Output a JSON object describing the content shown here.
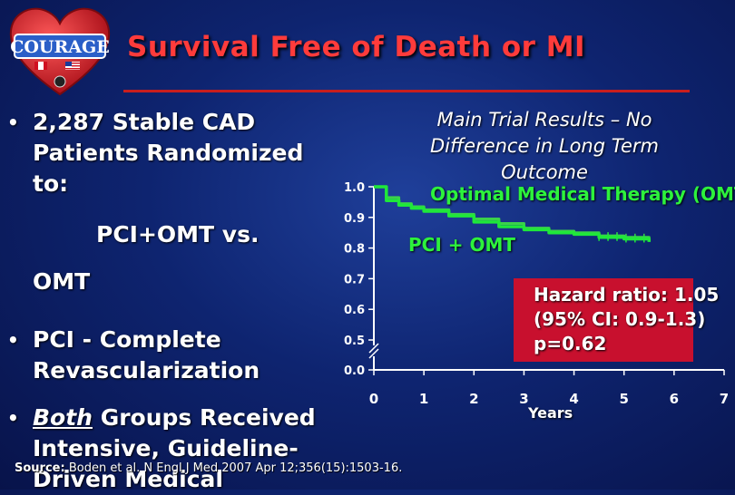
{
  "logo": {
    "text": "COURAGE"
  },
  "title": "Survival Free of Death or MI",
  "bullets": {
    "b1_lines": [
      "2,287 Stable CAD",
      "Patients Randomized",
      "to:"
    ],
    "sub1": "PCI+OMT vs.",
    "sub2": "OMT",
    "b2_lines": [
      "PCI - Complete",
      "Revascularization"
    ],
    "b3_emph": "Both",
    "b3_rest": " Groups Received",
    "b3_lines": [
      "Intensive, Guideline-",
      "Driven Medical"
    ]
  },
  "source": {
    "label": "Source:",
    "text": " Boden et al. N Engl J Med 2007 Apr 12;356(15):1503-16."
  },
  "chart_note": [
    "Main Trial Results – No",
    "Difference in Long Term",
    "Outcome"
  ],
  "hazard": [
    "Hazard ratio: 1.05",
    "(95% CI: 0.9-1.3)",
    "p=0.62"
  ],
  "colors": {
    "omt": "#3ad24a",
    "pci": "#1fe83a",
    "title": "#ff3b3b",
    "box": "#c8102e"
  },
  "chart_data": {
    "type": "line",
    "title": "",
    "xlabel": "Years",
    "ylabel": "",
    "x_ticks": [
      0,
      1,
      2,
      3,
      4,
      5,
      6,
      7
    ],
    "y_ticks": [
      "0.0",
      "0.5",
      "0.6",
      "0.7",
      "0.8",
      "0.9",
      "1.0"
    ],
    "y_break": true,
    "xlim": [
      0,
      7
    ],
    "ylim": [
      0.5,
      1.0
    ],
    "series": [
      {
        "name": "Optimal Medical Therapy (OMT)",
        "x": [
          0,
          0.25,
          0.5,
          0.75,
          1,
          1.5,
          2,
          2.5,
          3,
          3.5,
          4,
          4.5,
          5,
          5.5
        ],
        "y": [
          1.0,
          0.965,
          0.945,
          0.935,
          0.925,
          0.91,
          0.895,
          0.88,
          0.865,
          0.855,
          0.85,
          0.84,
          0.835,
          0.83
        ]
      },
      {
        "name": "PCI + OMT",
        "x": [
          0,
          0.25,
          0.5,
          0.75,
          1,
          1.5,
          2,
          2.5,
          3,
          3.5,
          4,
          4.5,
          5,
          5.5
        ],
        "y": [
          1.0,
          0.955,
          0.94,
          0.93,
          0.92,
          0.905,
          0.885,
          0.87,
          0.86,
          0.85,
          0.845,
          0.835,
          0.83,
          0.82
        ]
      }
    ]
  }
}
